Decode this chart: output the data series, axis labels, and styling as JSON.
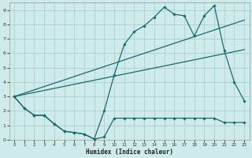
{
  "xlabel": "Humidex (Indice chaleur)",
  "background_color": "#ceeaea",
  "grid_color": "#afd4d4",
  "line_color": "#1a6b6b",
  "xlim": [
    -0.5,
    23.5
  ],
  "ylim": [
    0,
    9.5
  ],
  "xtick_labels": [
    "0",
    "1",
    "2",
    "3",
    "4",
    "5",
    "6",
    "7",
    "8",
    "9",
    "10",
    "11",
    "12",
    "13",
    "14",
    "15",
    "16",
    "17",
    "18",
    "19",
    "20",
    "21",
    "22",
    "23"
  ],
  "ytick_labels": [
    "0",
    "1",
    "2",
    "3",
    "4",
    "5",
    "6",
    "7",
    "8",
    "9"
  ],
  "line1_x": [
    0,
    1,
    2,
    3,
    4,
    5,
    6,
    7,
    8,
    9,
    10,
    11,
    12,
    13,
    14,
    15,
    16,
    17,
    18,
    19,
    20,
    21,
    22,
    23
  ],
  "line1_y": [
    3.0,
    2.2,
    1.7,
    1.7,
    1.1,
    0.6,
    0.5,
    0.4,
    0.05,
    2.0,
    4.5,
    6.6,
    7.5,
    7.9,
    8.5,
    9.2,
    8.7,
    8.6,
    7.2,
    8.6,
    9.3,
    6.2,
    4.0,
    2.7
  ],
  "line2_x": [
    0,
    1,
    2,
    3,
    4,
    5,
    6,
    7,
    8,
    9,
    10,
    11,
    12,
    13,
    14,
    15,
    16,
    17,
    18,
    19,
    20,
    21,
    22,
    23
  ],
  "line2_y": [
    3.0,
    2.2,
    1.7,
    1.7,
    1.1,
    0.6,
    0.5,
    0.4,
    0.05,
    0.2,
    1.5,
    1.5,
    1.5,
    1.5,
    1.5,
    1.5,
    1.5,
    1.5,
    1.5,
    1.5,
    1.5,
    1.2,
    1.2,
    1.2
  ],
  "line3_x": [
    0,
    23
  ],
  "line3_y": [
    3.0,
    8.3
  ],
  "line4_x": [
    0,
    23
  ],
  "line4_y": [
    3.0,
    6.25
  ]
}
